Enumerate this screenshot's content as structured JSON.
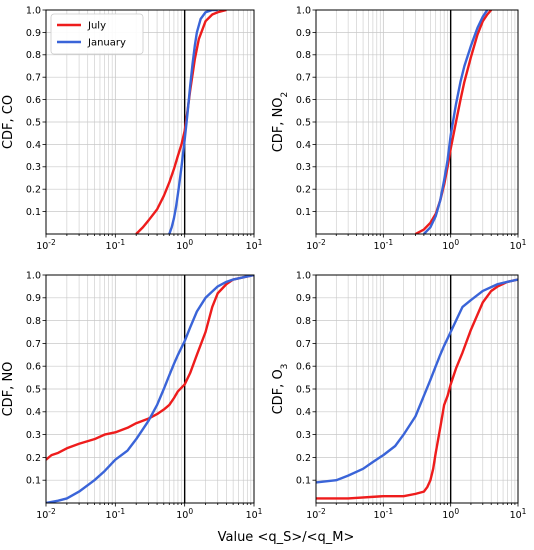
{
  "figure": {
    "xlabel": "Value <q_S>/<q_M>",
    "colors": {
      "July": "#ee1c1c",
      "January": "#3a64d8",
      "grid": "#c8c8c8",
      "axis": "#000000"
    }
  },
  "chart_data": [
    {
      "type": "line",
      "ylabel": "CDF, CO",
      "xscale": "log",
      "xlim": [
        0.01,
        10
      ],
      "ylim": [
        0,
        1
      ],
      "xtick_labels": [
        "10^-2",
        "10^-1",
        "10^0",
        "10^1"
      ],
      "ytick_labels": [
        "0.1",
        "0.2",
        "0.3",
        "0.4",
        "0.5",
        "0.6",
        "0.7",
        "0.8",
        "0.9",
        "1.0"
      ],
      "legend": {
        "position": "top-left",
        "entries": [
          "July",
          "January"
        ]
      },
      "grid": true,
      "vertical_reference_x": 1,
      "series": [
        {
          "name": "July",
          "x": [
            0.2,
            0.25,
            0.3,
            0.4,
            0.5,
            0.6,
            0.7,
            0.8,
            0.9,
            1.0,
            1.1,
            1.2,
            1.4,
            1.6,
            2.0,
            2.5,
            3.0,
            4.0
          ],
          "y": [
            0.0,
            0.03,
            0.06,
            0.11,
            0.17,
            0.23,
            0.29,
            0.35,
            0.4,
            0.46,
            0.55,
            0.64,
            0.78,
            0.87,
            0.95,
            0.98,
            0.99,
            1.0
          ]
        },
        {
          "name": "January",
          "x": [
            0.6,
            0.65,
            0.7,
            0.75,
            0.8,
            0.85,
            0.9,
            1.0,
            1.1,
            1.2,
            1.3,
            1.4,
            1.5,
            1.7,
            2.0,
            2.5,
            3.0
          ],
          "y": [
            0.0,
            0.03,
            0.07,
            0.12,
            0.18,
            0.24,
            0.3,
            0.42,
            0.54,
            0.66,
            0.76,
            0.84,
            0.9,
            0.96,
            0.99,
            1.0,
            1.0
          ]
        }
      ]
    },
    {
      "type": "line",
      "ylabel": "CDF, NO₂",
      "xscale": "log",
      "xlim": [
        0.01,
        10
      ],
      "ylim": [
        0,
        1
      ],
      "xtick_labels": [
        "10^-2",
        "10^-1",
        "10^0",
        "10^1"
      ],
      "ytick_labels": [
        "0.1",
        "0.2",
        "0.3",
        "0.4",
        "0.5",
        "0.6",
        "0.7",
        "0.8",
        "0.9",
        "1.0"
      ],
      "grid": true,
      "vertical_reference_x": 1,
      "series": [
        {
          "name": "July",
          "x": [
            0.3,
            0.4,
            0.5,
            0.6,
            0.7,
            0.8,
            0.9,
            1.0,
            1.2,
            1.4,
            1.6,
            2.0,
            2.5,
            3.0,
            3.5,
            4.0
          ],
          "y": [
            0.0,
            0.02,
            0.05,
            0.09,
            0.15,
            0.22,
            0.3,
            0.38,
            0.5,
            0.6,
            0.68,
            0.79,
            0.89,
            0.95,
            0.98,
            1.0
          ]
        },
        {
          "name": "January",
          "x": [
            0.4,
            0.5,
            0.6,
            0.7,
            0.8,
            0.9,
            1.0,
            1.2,
            1.4,
            1.6,
            2.0,
            2.5,
            3.0,
            3.5
          ],
          "y": [
            0.0,
            0.03,
            0.08,
            0.15,
            0.24,
            0.33,
            0.44,
            0.58,
            0.68,
            0.75,
            0.84,
            0.92,
            0.97,
            1.0
          ]
        }
      ]
    },
    {
      "type": "line",
      "ylabel": "CDF, NO",
      "xscale": "log",
      "xlim": [
        0.01,
        10
      ],
      "ylim": [
        0,
        1
      ],
      "xtick_labels": [
        "10^-2",
        "10^-1",
        "10^0",
        "10^1"
      ],
      "ytick_labels": [
        "0.1",
        "0.2",
        "0.3",
        "0.4",
        "0.5",
        "0.6",
        "0.7",
        "0.8",
        "0.9",
        "1.0"
      ],
      "grid": true,
      "vertical_reference_x": 1,
      "series": [
        {
          "name": "July",
          "x": [
            0.01,
            0.012,
            0.015,
            0.02,
            0.03,
            0.05,
            0.07,
            0.1,
            0.15,
            0.2,
            0.3,
            0.4,
            0.5,
            0.6,
            0.7,
            0.8,
            1.0,
            1.2,
            1.5,
            2.0,
            2.5,
            3.0,
            4.0,
            5.0,
            7.0,
            10.0
          ],
          "y": [
            0.19,
            0.21,
            0.22,
            0.24,
            0.26,
            0.28,
            0.3,
            0.31,
            0.33,
            0.35,
            0.37,
            0.39,
            0.41,
            0.43,
            0.46,
            0.49,
            0.52,
            0.57,
            0.65,
            0.75,
            0.86,
            0.92,
            0.96,
            0.98,
            0.99,
            1.0
          ]
        },
        {
          "name": "January",
          "x": [
            0.01,
            0.015,
            0.02,
            0.03,
            0.05,
            0.07,
            0.1,
            0.15,
            0.2,
            0.3,
            0.4,
            0.5,
            0.6,
            0.7,
            0.8,
            1.0,
            1.2,
            1.5,
            2.0,
            3.0,
            4.0,
            5.0,
            7.0,
            10.0
          ],
          "y": [
            0.0,
            0.01,
            0.02,
            0.05,
            0.1,
            0.14,
            0.19,
            0.23,
            0.28,
            0.36,
            0.43,
            0.5,
            0.56,
            0.61,
            0.65,
            0.71,
            0.77,
            0.84,
            0.9,
            0.95,
            0.97,
            0.98,
            0.99,
            1.0
          ]
        }
      ]
    },
    {
      "type": "line",
      "ylabel": "CDF, O₃",
      "xscale": "log",
      "xlim": [
        0.01,
        10
      ],
      "ylim": [
        0,
        1
      ],
      "xtick_labels": [
        "10^-2",
        "10^-1",
        "10^0",
        "10^1"
      ],
      "ytick_labels": [
        "0.1",
        "0.2",
        "0.3",
        "0.4",
        "0.5",
        "0.6",
        "0.7",
        "0.8",
        "0.9",
        "1.0"
      ],
      "grid": true,
      "vertical_reference_x": 1,
      "series": [
        {
          "name": "July",
          "x": [
            0.01,
            0.03,
            0.1,
            0.2,
            0.3,
            0.4,
            0.45,
            0.5,
            0.55,
            0.6,
            0.7,
            0.8,
            0.9,
            1.0,
            1.2,
            1.5,
            2.0,
            3.0,
            4.0,
            5.0,
            7.0,
            10.0
          ],
          "y": [
            0.02,
            0.02,
            0.03,
            0.03,
            0.04,
            0.05,
            0.07,
            0.1,
            0.15,
            0.22,
            0.33,
            0.43,
            0.47,
            0.52,
            0.59,
            0.66,
            0.76,
            0.88,
            0.93,
            0.95,
            0.97,
            0.98
          ]
        },
        {
          "name": "January",
          "x": [
            0.01,
            0.02,
            0.03,
            0.05,
            0.07,
            0.1,
            0.15,
            0.2,
            0.3,
            0.4,
            0.5,
            0.6,
            0.7,
            0.8,
            1.0,
            1.2,
            1.5,
            2.0,
            3.0,
            5.0,
            7.0,
            10.0
          ],
          "y": [
            0.09,
            0.1,
            0.12,
            0.15,
            0.18,
            0.21,
            0.25,
            0.3,
            0.38,
            0.47,
            0.54,
            0.6,
            0.65,
            0.69,
            0.75,
            0.8,
            0.86,
            0.89,
            0.93,
            0.96,
            0.97,
            0.98
          ]
        }
      ]
    }
  ]
}
